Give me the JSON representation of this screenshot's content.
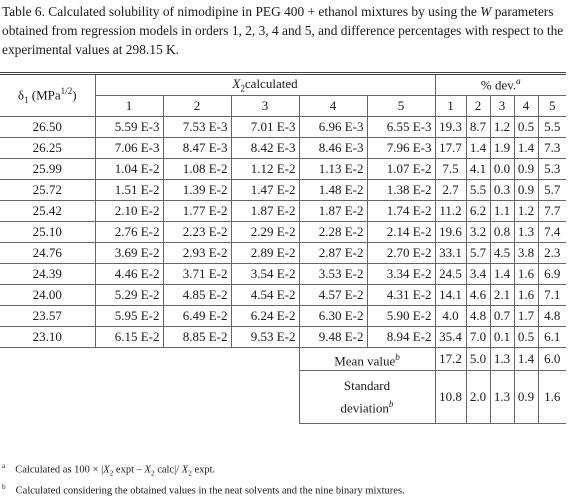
{
  "caption": [
    "Table 6. Calculated solubility of nimodipine in PEG 400 + ethanol mixtures by using the",
    "W",
    "parameters obtained from regression models in orders 1, 2, 3, 4 and 5, and difference percentages with respect to the experimental values at 298.15 K."
  ],
  "header": {
    "delta": {
      "symbol": "δ",
      "sub": "1",
      "unit": "(MPa",
      "sup": "1/2",
      "close": ")"
    },
    "calc": {
      "var": "X",
      "sub": "2",
      "text": "calculated"
    },
    "dev": {
      "text": "% dev.",
      "note": "a"
    },
    "orders": [
      "1",
      "2",
      "3",
      "4",
      "5"
    ]
  },
  "table": {
    "rows": [
      [
        "26.50",
        "5.59 E-3",
        "7.53 E-3",
        "7.01 E-3",
        "6.96 E-3",
        "6.55 E-3",
        "19.3",
        "8.7",
        "1.2",
        "0.5",
        "5.5"
      ],
      [
        "26.25",
        "7.06 E-3",
        "8.47 E-3",
        "8.42 E-3",
        "8.46 E-3",
        "7.96 E-3",
        "17.7",
        "1.4",
        "1.9",
        "1.4",
        "7.3"
      ],
      [
        "25.99",
        "1.04 E-2",
        "1.08 E-2",
        "1.12 E-2",
        "1.13 E-2",
        "1.07 E-2",
        "7.5",
        "4.1",
        "0.0",
        "0.9",
        "5.3"
      ],
      [
        "25.72",
        "1.51 E-2",
        "1.39 E-2",
        "1.47 E-2",
        "1.48 E-2",
        "1.38 E-2",
        "2.7",
        "5.5",
        "0.3",
        "0.9",
        "5.7"
      ],
      [
        "25.42",
        "2.10 E-2",
        "1.77 E-2",
        "1.87 E-2",
        "1.87 E-2",
        "1.74 E-2",
        "11.2",
        "6.2",
        "1.1",
        "1.2",
        "7.7"
      ],
      [
        "25.10",
        "2.76 E-2",
        "2.23 E-2",
        "2.29 E-2",
        "2.28 E-2",
        "2.14 E-2",
        "19.6",
        "3.2",
        "0.8",
        "1.3",
        "7.4"
      ],
      [
        "24.76",
        "3.69 E-2",
        "2.93 E-2",
        "2.89 E-2",
        "2.87 E-2",
        "2.70 E-2",
        "33.1",
        "5.7",
        "4.5",
        "3.8",
        "2.3"
      ],
      [
        "24.39",
        "4.46 E-2",
        "3.71 E-2",
        "3.54 E-2",
        "3.53 E-2",
        "3.34 E-2",
        "24.5",
        "3.4",
        "1.4",
        "1.6",
        "6.9"
      ],
      [
        "24.00",
        "5.29 E-2",
        "4.85 E-2",
        "4.54 E-2",
        "4.57 E-2",
        "4.31 E-2",
        "14.1",
        "4.6",
        "2.1",
        "1.6",
        "7.1"
      ],
      [
        "23.57",
        "5.95 E-2",
        "6.49 E-2",
        "6.24 E-2",
        "6.30 E-2",
        "5.90 E-2",
        "4.0",
        "4.8",
        "0.7",
        "1.7",
        "4.8"
      ],
      [
        "23.10",
        "6.15 E-2",
        "8.85 E-2",
        "9.53 E-2",
        "9.48 E-2",
        "8.94 E-2",
        "35.4",
        "7.0",
        "0.1",
        "0.5",
        "6.1"
      ]
    ],
    "summary": [
      {
        "label": "Mean value",
        "note": "b",
        "values": [
          "17.2",
          "5.0",
          "1.3",
          "1.4",
          "6.0"
        ]
      },
      {
        "label": "Standard deviation",
        "note": "b",
        "values": [
          "10.8",
          "2.0",
          "1.3",
          "0.9",
          "1.6"
        ]
      }
    ]
  },
  "footnotes": [
    {
      "mark": "a",
      "parts": [
        "Calculated as 100 × |",
        "X",
        "2",
        "expt –",
        "X",
        "2",
        "calc|/",
        "X",
        "2",
        "expt."
      ]
    },
    {
      "mark": "b",
      "parts": [
        "Calculated considering the obtained values in the neat solvents and the nine binary mixtures."
      ]
    }
  ]
}
